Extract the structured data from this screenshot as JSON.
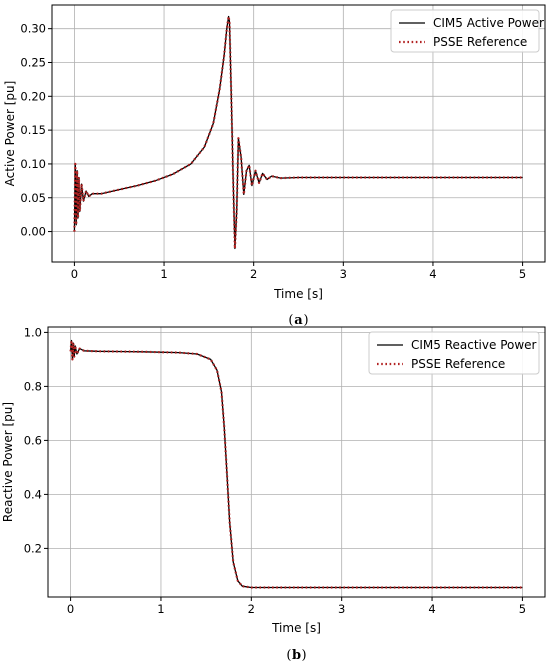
{
  "chart_data": [
    {
      "panel": "(a)",
      "type": "line",
      "xlabel": "Time [s]",
      "ylabel": "Active Power [pu]",
      "xlim": [
        -0.25,
        5.25
      ],
      "ylim": [
        -0.045,
        0.335
      ],
      "xticks": [
        "0",
        "1",
        "2",
        "3",
        "4",
        "5"
      ],
      "yticks": [
        "0.00",
        "0.05",
        "0.10",
        "0.15",
        "0.20",
        "0.25",
        "0.30"
      ],
      "grid": true,
      "legend_position": "top-right",
      "series": [
        {
          "name": "CIM5 Active Power",
          "color": "#000000",
          "style": "solid",
          "points": [
            [
              0.0,
              0.0
            ],
            [
              0.01,
              0.1
            ],
            [
              0.02,
              0.01
            ],
            [
              0.03,
              0.09
            ],
            [
              0.04,
              0.02
            ],
            [
              0.05,
              0.08
            ],
            [
              0.06,
              0.03
            ],
            [
              0.08,
              0.07
            ],
            [
              0.1,
              0.045
            ],
            [
              0.13,
              0.06
            ],
            [
              0.16,
              0.052
            ],
            [
              0.2,
              0.056
            ],
            [
              0.3,
              0.056
            ],
            [
              0.5,
              0.062
            ],
            [
              0.7,
              0.068
            ],
            [
              0.9,
              0.075
            ],
            [
              1.1,
              0.085
            ],
            [
              1.3,
              0.1
            ],
            [
              1.45,
              0.125
            ],
            [
              1.55,
              0.16
            ],
            [
              1.62,
              0.21
            ],
            [
              1.67,
              0.26
            ],
            [
              1.7,
              0.3
            ],
            [
              1.72,
              0.318
            ],
            [
              1.73,
              0.31
            ],
            [
              1.75,
              0.2
            ],
            [
              1.77,
              0.08
            ],
            [
              1.79,
              -0.025
            ],
            [
              1.81,
              0.03
            ],
            [
              1.83,
              0.138
            ],
            [
              1.86,
              0.11
            ],
            [
              1.89,
              0.055
            ],
            [
              1.92,
              0.09
            ],
            [
              1.95,
              0.098
            ],
            [
              1.98,
              0.068
            ],
            [
              2.02,
              0.09
            ],
            [
              2.06,
              0.072
            ],
            [
              2.1,
              0.086
            ],
            [
              2.15,
              0.077
            ],
            [
              2.2,
              0.082
            ],
            [
              2.3,
              0.079
            ],
            [
              2.5,
              0.08
            ],
            [
              5.0,
              0.08
            ]
          ]
        },
        {
          "name": "PSSE Reference",
          "color": "#b22222",
          "style": "dotted",
          "points": [
            [
              0.0,
              0.0
            ],
            [
              0.01,
              0.1
            ],
            [
              0.02,
              0.01
            ],
            [
              0.03,
              0.09
            ],
            [
              0.04,
              0.02
            ],
            [
              0.05,
              0.08
            ],
            [
              0.06,
              0.03
            ],
            [
              0.08,
              0.07
            ],
            [
              0.1,
              0.045
            ],
            [
              0.13,
              0.06
            ],
            [
              0.16,
              0.052
            ],
            [
              0.2,
              0.056
            ],
            [
              0.3,
              0.056
            ],
            [
              0.5,
              0.062
            ],
            [
              0.7,
              0.068
            ],
            [
              0.9,
              0.075
            ],
            [
              1.1,
              0.085
            ],
            [
              1.3,
              0.1
            ],
            [
              1.45,
              0.125
            ],
            [
              1.55,
              0.16
            ],
            [
              1.62,
              0.21
            ],
            [
              1.67,
              0.26
            ],
            [
              1.7,
              0.3
            ],
            [
              1.72,
              0.318
            ],
            [
              1.73,
              0.31
            ],
            [
              1.75,
              0.2
            ],
            [
              1.77,
              0.08
            ],
            [
              1.79,
              -0.025
            ],
            [
              1.81,
              0.03
            ],
            [
              1.83,
              0.138
            ],
            [
              1.86,
              0.11
            ],
            [
              1.89,
              0.055
            ],
            [
              1.92,
              0.09
            ],
            [
              1.95,
              0.098
            ],
            [
              1.98,
              0.068
            ],
            [
              2.02,
              0.09
            ],
            [
              2.06,
              0.072
            ],
            [
              2.1,
              0.086
            ],
            [
              2.15,
              0.077
            ],
            [
              2.2,
              0.082
            ],
            [
              2.3,
              0.079
            ],
            [
              2.5,
              0.08
            ],
            [
              5.0,
              0.08
            ]
          ]
        }
      ]
    },
    {
      "panel": "(b)",
      "type": "line",
      "xlabel": "Time [s]",
      "ylabel": "Reactive Power [pu]",
      "xlim": [
        -0.25,
        5.25
      ],
      "ylim": [
        0.02,
        1.02
      ],
      "xticks": [
        "0",
        "1",
        "2",
        "3",
        "4",
        "5"
      ],
      "yticks": [
        "0.2",
        "0.4",
        "0.6",
        "0.8",
        "1.0"
      ],
      "grid": true,
      "legend_position": "top-right",
      "series": [
        {
          "name": "CIM5 Reactive Power",
          "color": "#000000",
          "style": "solid",
          "points": [
            [
              0.0,
              0.93
            ],
            [
              0.01,
              0.97
            ],
            [
              0.02,
              0.9
            ],
            [
              0.03,
              0.96
            ],
            [
              0.04,
              0.91
            ],
            [
              0.05,
              0.95
            ],
            [
              0.07,
              0.92
            ],
            [
              0.1,
              0.94
            ],
            [
              0.15,
              0.932
            ],
            [
              0.3,
              0.93
            ],
            [
              0.8,
              0.928
            ],
            [
              1.2,
              0.925
            ],
            [
              1.4,
              0.92
            ],
            [
              1.55,
              0.9
            ],
            [
              1.62,
              0.86
            ],
            [
              1.67,
              0.78
            ],
            [
              1.7,
              0.65
            ],
            [
              1.73,
              0.48
            ],
            [
              1.76,
              0.3
            ],
            [
              1.8,
              0.15
            ],
            [
              1.85,
              0.08
            ],
            [
              1.9,
              0.06
            ],
            [
              2.0,
              0.055
            ],
            [
              5.0,
              0.055
            ]
          ]
        },
        {
          "name": "PSSE Reference",
          "color": "#b22222",
          "style": "dotted",
          "points": [
            [
              0.0,
              0.93
            ],
            [
              0.01,
              0.97
            ],
            [
              0.02,
              0.9
            ],
            [
              0.03,
              0.96
            ],
            [
              0.04,
              0.91
            ],
            [
              0.05,
              0.95
            ],
            [
              0.07,
              0.92
            ],
            [
              0.1,
              0.94
            ],
            [
              0.15,
              0.932
            ],
            [
              0.3,
              0.93
            ],
            [
              0.8,
              0.928
            ],
            [
              1.2,
              0.925
            ],
            [
              1.4,
              0.92
            ],
            [
              1.55,
              0.9
            ],
            [
              1.62,
              0.86
            ],
            [
              1.67,
              0.78
            ],
            [
              1.7,
              0.65
            ],
            [
              1.73,
              0.48
            ],
            [
              1.76,
              0.3
            ],
            [
              1.8,
              0.15
            ],
            [
              1.85,
              0.08
            ],
            [
              1.9,
              0.06
            ],
            [
              2.0,
              0.055
            ],
            [
              5.0,
              0.055
            ]
          ]
        }
      ]
    }
  ]
}
